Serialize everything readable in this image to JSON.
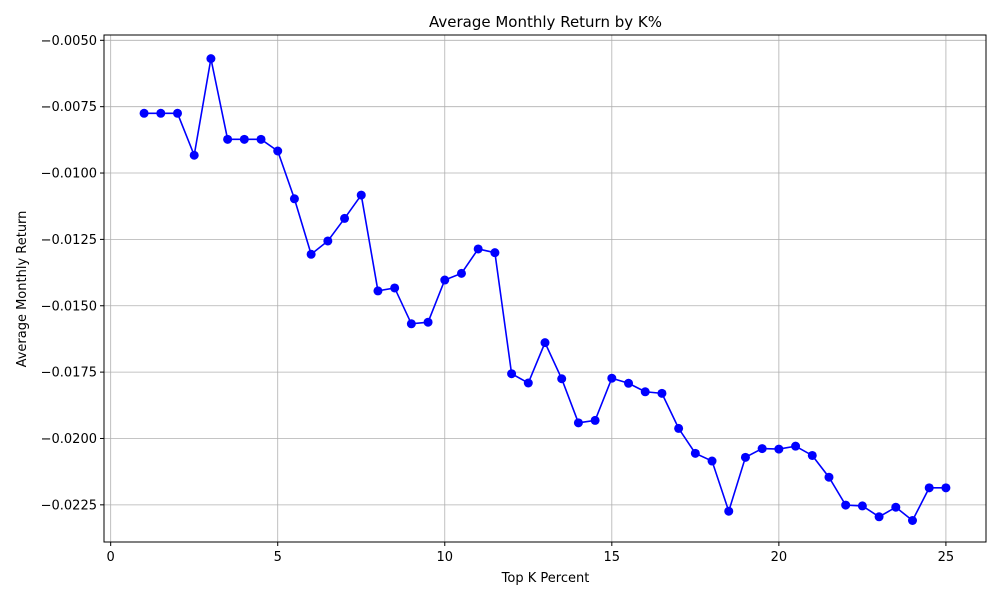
{
  "chart_data": {
    "type": "line",
    "title": "Average Monthly Return by K%",
    "xlabel": "Top K Percent",
    "ylabel": "Average Monthly Return",
    "xlim": [
      -0.2,
      26.2
    ],
    "ylim": [
      -0.0239,
      -0.0048
    ],
    "xticks": [
      0,
      5,
      10,
      15,
      20,
      25
    ],
    "xtick_labels": [
      "0",
      "5",
      "10",
      "15",
      "20",
      "25"
    ],
    "yticks": [
      -0.005,
      -0.0075,
      -0.01,
      -0.0125,
      -0.015,
      -0.0175,
      -0.02,
      -0.0225
    ],
    "ytick_labels": [
      "−0.0050",
      "−0.0075",
      "−0.0100",
      "−0.0125",
      "−0.0150",
      "−0.0175",
      "−0.0200",
      "−0.0225"
    ],
    "grid": true,
    "color": "#0000ff",
    "series": [
      {
        "x": [
          1,
          1.5,
          2,
          2.5,
          3,
          3.5,
          4,
          4.5,
          5,
          5.5,
          6,
          6.5,
          7,
          7.5,
          8,
          8.5,
          9,
          9.5,
          10,
          10.5,
          11,
          11.5,
          12,
          12.5,
          13,
          13.5,
          14,
          14.5,
          15,
          15.5,
          16,
          16.5,
          17,
          17.5,
          18,
          18.5,
          19,
          19.5,
          20,
          20.5,
          21,
          21.5,
          22,
          22.5,
          23,
          23.5,
          24,
          24.5,
          25
        ],
        "values": [
          -0.00775,
          -0.00775,
          -0.00775,
          -0.00933,
          -0.00569,
          -0.00873,
          -0.00873,
          -0.00873,
          -0.00917,
          -0.01097,
          -0.01306,
          -0.01256,
          -0.01171,
          -0.01083,
          -0.01444,
          -0.01433,
          -0.01568,
          -0.01562,
          -0.01403,
          -0.01378,
          -0.01286,
          -0.013,
          -0.01756,
          -0.01791,
          -0.01639,
          -0.01775,
          -0.01941,
          -0.01932,
          -0.01773,
          -0.01792,
          -0.01824,
          -0.0183,
          -0.01962,
          -0.02056,
          -0.02085,
          -0.02274,
          -0.02071,
          -0.02038,
          -0.0204,
          -0.02029,
          -0.02064,
          -0.02146,
          -0.02251,
          -0.02254,
          -0.02295,
          -0.02259,
          -0.02309,
          -0.02186,
          -0.02186
        ]
      }
    ]
  }
}
